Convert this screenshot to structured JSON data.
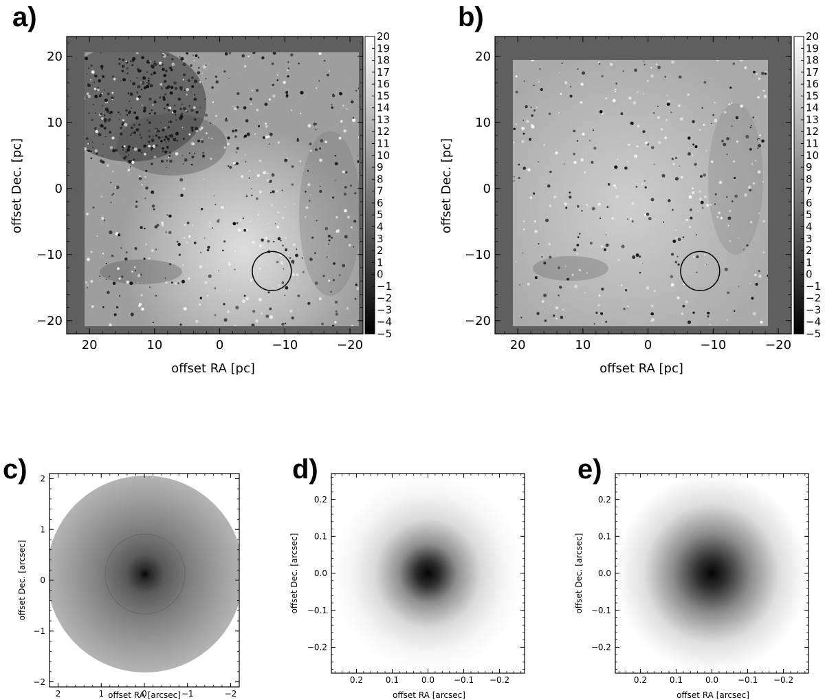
{
  "chart_data": [
    {
      "panel": "a)",
      "type": "heatmap",
      "xlabel": "offset RA [pc]",
      "ylabel": "offset Dec. [pc]",
      "xlim": [
        23.5,
        -22.0
      ],
      "ylim": [
        -22.0,
        23.0
      ],
      "xticks": [
        20,
        10,
        0,
        -10,
        -20
      ],
      "yticks": [
        -20,
        -10,
        0,
        10,
        20
      ],
      "colorbar": {
        "min": -5,
        "max": 20,
        "ticks": [
          -5,
          -4,
          -3,
          -2,
          -1,
          0,
          1,
          2,
          3,
          4,
          5,
          6,
          7,
          8,
          9,
          10,
          11,
          12,
          13,
          14,
          15,
          16,
          17,
          18,
          19,
          20
        ],
        "colors": [
          "#000000",
          "#ffffff"
        ]
      },
      "circle": {
        "x": -8.0,
        "y": -12.5,
        "radius": 3.0
      }
    },
    {
      "panel": "b)",
      "type": "heatmap",
      "xlabel": "offset RA [pc]",
      "ylabel": "offset Dec. [pc]",
      "xlim": [
        23.5,
        -22.0
      ],
      "ylim": [
        -22.0,
        23.0
      ],
      "xticks": [
        20,
        10,
        0,
        -10,
        -20
      ],
      "yticks": [
        -20,
        -10,
        0,
        10,
        20
      ],
      "colorbar": {
        "min": -5,
        "max": 20,
        "ticks": [
          -5,
          -4,
          -3,
          -2,
          -1,
          0,
          1,
          2,
          3,
          4,
          5,
          6,
          7,
          8,
          9,
          10,
          11,
          12,
          13,
          14,
          15,
          16,
          17,
          18,
          19,
          20
        ],
        "colors": [
          "#000000",
          "#ffffff"
        ]
      },
      "circle": {
        "x": -8.0,
        "y": -12.5,
        "radius": 3.0
      }
    },
    {
      "panel": "c)",
      "type": "heatmap",
      "xlabel": "offset RA [arcsec]",
      "ylabel": "offset Dec. [arcsec]",
      "xlim": [
        2.2,
        -2.2
      ],
      "ylim": [
        -2.1,
        2.1
      ],
      "xticks": [
        2,
        1,
        0,
        -1,
        -2
      ],
      "yticks": [
        -2,
        -1,
        0,
        1,
        2
      ],
      "ytick_labels": [
        "−2",
        "−1",
        "0",
        "1",
        "2"
      ],
      "xtick_labels": [
        "2",
        "1",
        "0",
        "−1",
        "−2"
      ],
      "profile": "wide-disk"
    },
    {
      "panel": "d)",
      "type": "heatmap",
      "xlabel": "offset RA [arcsec]",
      "ylabel": "offset Dec. [arcsec]",
      "xlim": [
        0.27,
        -0.27
      ],
      "ylim": [
        -0.27,
        0.27
      ],
      "xticks": [
        0.2,
        0.1,
        0.0,
        -0.1,
        -0.2
      ],
      "yticks": [
        -0.2,
        -0.1,
        0.0,
        0.1,
        0.2
      ],
      "ytick_labels": [
        "−0.2",
        "−0.1",
        "0.0",
        "0.1",
        "0.2"
      ],
      "xtick_labels": [
        "0.2",
        "0.1",
        "0.0",
        "−0.1",
        "−0.2"
      ],
      "profile": "compact-psf"
    },
    {
      "panel": "e)",
      "type": "heatmap",
      "xlabel": "offset RA [arcsec]",
      "ylabel": "offset Dec. [arcsec]",
      "xlim": [
        0.27,
        -0.27
      ],
      "ylim": [
        -0.27,
        0.27
      ],
      "xticks": [
        0.2,
        0.1,
        0.0,
        -0.1,
        -0.2
      ],
      "yticks": [
        -0.2,
        -0.1,
        0.0,
        0.1,
        0.2
      ],
      "ytick_labels": [
        "−0.2",
        "−0.1",
        "0.0",
        "0.1",
        "0.2"
      ],
      "xtick_labels": [
        "0.2",
        "0.1",
        "0.0",
        "−0.1",
        "−0.2"
      ],
      "profile": "broad-psf"
    }
  ],
  "labels": {
    "panel_a": "a)",
    "panel_b": "b)",
    "panel_c": "c)",
    "panel_d": "d)",
    "panel_e": "e)",
    "pc_x": "offset RA [pc]",
    "pc_y": "offset Dec. [pc]",
    "arc_x": "offset RA [arcsec]",
    "arc_y": "offset Dec. [arcsec]"
  },
  "colors": {
    "border_gray": "#5f5f5f",
    "ink": "#000000"
  }
}
